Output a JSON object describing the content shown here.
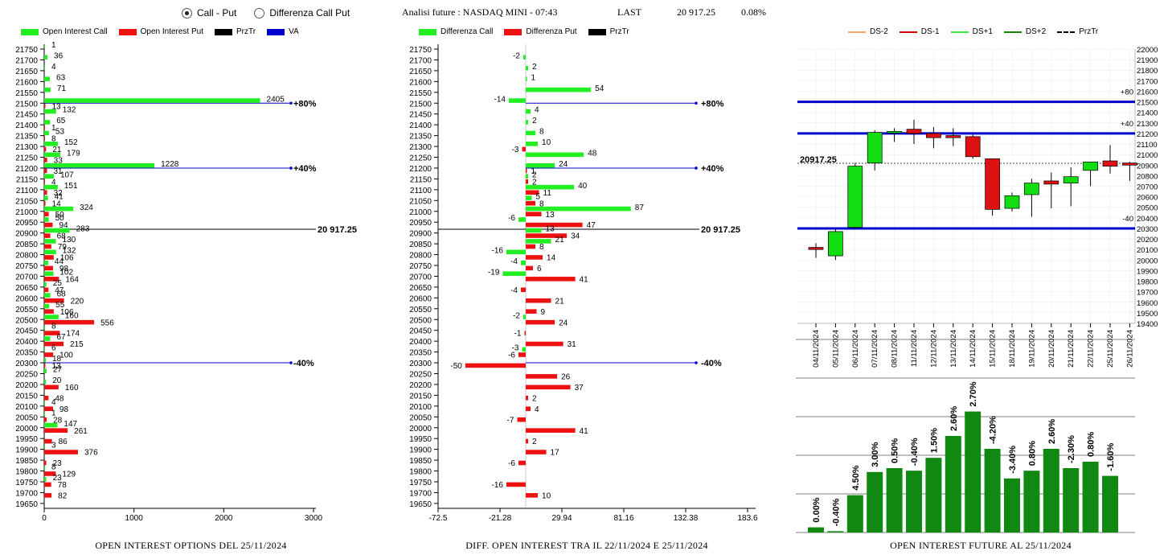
{
  "header": {
    "radio_call_put": "Call - Put",
    "radio_diff": "Differenza Call Put",
    "title": "Analisi future : NASDAQ MINI - 07:43",
    "last_label": "LAST",
    "price": "20 917.25",
    "change": "0.08%"
  },
  "legends": {
    "left": [
      {
        "label": "Open Interest Call",
        "color": "#22ee22",
        "kind": "box"
      },
      {
        "label": "Open Interest Put",
        "color": "#ee1111",
        "kind": "box"
      },
      {
        "label": "PrzTr",
        "color": "#000000",
        "kind": "box"
      },
      {
        "label": "VA",
        "color": "#0000cc",
        "kind": "box"
      }
    ],
    "mid": [
      {
        "label": "Differenza Call",
        "color": "#22ee22",
        "kind": "box"
      },
      {
        "label": "Differenza Put",
        "color": "#ee1111",
        "kind": "box"
      },
      {
        "label": "PrzTr",
        "color": "#000000",
        "kind": "box"
      }
    ],
    "right": [
      {
        "label": "DS-2",
        "color": "#f4a070",
        "kind": "line"
      },
      {
        "label": "DS-1",
        "color": "#dd0000",
        "kind": "line"
      },
      {
        "label": "DS+1",
        "color": "#33ee33",
        "kind": "line"
      },
      {
        "label": "DS+2",
        "color": "#118811",
        "kind": "line"
      },
      {
        "label": "PrzTr",
        "color": "#000000",
        "kind": "dash"
      }
    ]
  },
  "titles": {
    "left": "OPEN INTEREST OPTIONS DEL 25/11/2024",
    "mid": "DIFF. OPEN INTEREST TRA IL 22/11/2024 E 25/11/2024",
    "right": "OPEN INTEREST FUTURE AL 25/11/2024"
  },
  "chart_data": [
    {
      "type": "bar",
      "orientation": "horizontal",
      "title": "OPEN INTEREST OPTIONS DEL 25/11/2024",
      "categories": [
        21750,
        21700,
        21650,
        21600,
        21550,
        21500,
        21450,
        21400,
        21350,
        21300,
        21250,
        21200,
        21150,
        21100,
        21050,
        21000,
        20950,
        20900,
        20850,
        20800,
        20750,
        20700,
        20650,
        20600,
        20550,
        20500,
        20450,
        20400,
        20350,
        20300,
        20250,
        20200,
        20150,
        20100,
        20050,
        20000,
        19950,
        19900,
        19850,
        19800,
        19750,
        19700,
        19650
      ],
      "series": [
        {
          "name": "Open Interest Call",
          "color": "#22ee22",
          "values": [
            1,
            36,
            4,
            63,
            71,
            2405,
            132,
            65,
            53,
            152,
            179,
            1228,
            107,
            151,
            41,
            324,
            50,
            283,
            130,
            132,
            44,
            102,
            25,
            68,
            55,
            160,
            8,
            67,
            6,
            18,
            27,
            20,
            null,
            4,
            1,
            147,
            null,
            3,
            null,
            8,
            23,
            null,
            null
          ]
        },
        {
          "name": "Open Interest Put",
          "color": "#ee1111",
          "values": [
            null,
            null,
            null,
            null,
            null,
            13,
            null,
            1,
            8,
            21,
            33,
            31,
            4,
            32,
            14,
            50,
            94,
            68,
            79,
            106,
            98,
            164,
            47,
            220,
            106,
            556,
            174,
            215,
            100,
            13,
            null,
            160,
            48,
            98,
            28,
            261,
            86,
            376,
            23,
            129,
            78,
            82,
            null
          ]
        }
      ],
      "reference_lines": [
        {
          "label": "+80%",
          "price": 21500,
          "color": "#0000cc"
        },
        {
          "label": "+40%",
          "price": 21200,
          "color": "#0000cc"
        },
        {
          "label": "20 917.25",
          "price": 20917.25,
          "color": "#000000"
        },
        {
          "label": "-40%",
          "price": 20300,
          "color": "#0000cc"
        }
      ],
      "xticks": [
        0,
        1000,
        2000,
        3000
      ],
      "xlim": [
        0,
        3000
      ]
    },
    {
      "type": "bar",
      "orientation": "horizontal",
      "title": "DIFF. OPEN INTEREST TRA IL 22/11/2024 E 25/11/2024",
      "categories": [
        21750,
        21700,
        21650,
        21600,
        21550,
        21500,
        21450,
        21400,
        21350,
        21300,
        21250,
        21200,
        21150,
        21100,
        21050,
        21000,
        20950,
        20900,
        20850,
        20800,
        20750,
        20700,
        20650,
        20600,
        20550,
        20500,
        20450,
        20400,
        20350,
        20300,
        20250,
        20200,
        20150,
        20100,
        20050,
        20000,
        19950,
        19900,
        19850,
        19800,
        19750,
        19700,
        19650
      ],
      "series": [
        {
          "name": "Differenza Call",
          "color": "#22ee22",
          "values": [
            null,
            -2,
            2,
            1,
            54,
            -14,
            4,
            2,
            8,
            10,
            48,
            24,
            2,
            40,
            5,
            87,
            -6,
            13,
            21,
            -16,
            -4,
            -19,
            null,
            null,
            null,
            -2,
            null,
            null,
            -3,
            null,
            null,
            null,
            null,
            null,
            null,
            null,
            null,
            null,
            null,
            null,
            null,
            null,
            null
          ]
        },
        {
          "name": "Differenza Put",
          "color": "#ee1111",
          "values": [
            null,
            null,
            null,
            null,
            null,
            null,
            null,
            null,
            null,
            -3,
            null,
            1,
            2,
            11,
            8,
            13,
            47,
            34,
            8,
            14,
            6,
            41,
            -4,
            21,
            9,
            24,
            -1,
            31,
            -6,
            -50,
            26,
            37,
            2,
            4,
            -7,
            41,
            2,
            17,
            -6,
            null,
            -16,
            10,
            null
          ]
        }
      ],
      "reference_lines": [
        {
          "label": "+80%",
          "price": 21500,
          "color": "#0000cc"
        },
        {
          "label": "+40%",
          "price": 21200,
          "color": "#0000cc"
        },
        {
          "label": "20 917.25",
          "price": 20917.25,
          "color": "#000000"
        },
        {
          "label": "-40%",
          "price": 20300,
          "color": "#0000cc"
        }
      ],
      "xticks": [
        "-72.5",
        "-21.28",
        "29.94",
        "81.16",
        "132.38",
        "183.6"
      ],
      "xlim": [
        -72.5,
        183.6
      ]
    },
    {
      "type": "candlestick",
      "dates": [
        "04/11/2024",
        "05/11/2024",
        "06/11/2024",
        "07/11/2024",
        "08/11/2024",
        "11/11/2024",
        "12/11/2024",
        "13/11/2024",
        "14/11/2024",
        "15/11/2024",
        "18/11/2024",
        "19/11/2024",
        "20/11/2024",
        "21/11/2024",
        "22/11/2024",
        "25/11/2024",
        "26/11/2024"
      ],
      "ohlc": [
        [
          20120,
          20160,
          20020,
          20100
        ],
        [
          20040,
          20290,
          20000,
          20270
        ],
        [
          20310,
          20920,
          20290,
          20890
        ],
        [
          20920,
          21230,
          20850,
          21210
        ],
        [
          21210,
          21250,
          21120,
          21220
        ],
        [
          21240,
          21330,
          21100,
          21200
        ],
        [
          21200,
          21260,
          21060,
          21160
        ],
        [
          21180,
          21250,
          21080,
          21160
        ],
        [
          21170,
          21190,
          20960,
          20980
        ],
        [
          20960,
          20960,
          20420,
          20480
        ],
        [
          20490,
          20640,
          20460,
          20610
        ],
        [
          20620,
          20770,
          20410,
          20730
        ],
        [
          20750,
          20830,
          20490,
          20720
        ],
        [
          20730,
          20880,
          20510,
          20790
        ],
        [
          20850,
          20920,
          20700,
          20930
        ],
        [
          20940,
          21090,
          20820,
          20890
        ],
        [
          20920,
          20930,
          20750,
          20900
        ]
      ],
      "ylim": [
        19400,
        22000
      ],
      "yticks": [
        19400,
        19500,
        19600,
        19700,
        19800,
        19900,
        20000,
        20100,
        20200,
        20300,
        20400,
        20500,
        20600,
        20700,
        20800,
        20900,
        21000,
        21100,
        21200,
        21300,
        21400,
        21500,
        21600,
        21700,
        21800,
        21900,
        22000
      ],
      "hlines": [
        {
          "label": "+80",
          "price": 21500,
          "color": "#0000cc"
        },
        {
          "label": "+40",
          "price": 21200,
          "color": "#0000cc"
        },
        {
          "label": "-40",
          "price": 20300,
          "color": "#0000cc"
        }
      ],
      "price_label": "20917.25",
      "price": 20917.25
    },
    {
      "type": "bar",
      "title": "OPEN INTEREST FUTURE AL 25/11/2024",
      "categories": [
        "04/11/2024",
        "05/11/2024",
        "06/11/2024",
        "07/11/2024",
        "08/11/2024",
        "11/11/2024",
        "12/11/2024",
        "13/11/2024",
        "14/11/2024",
        "15/11/2024",
        "18/11/2024",
        "19/11/2024",
        "20/11/2024",
        "21/11/2024",
        "22/11/2024",
        "25/11/2024",
        "26/11/2024"
      ],
      "labels": [
        "0.00%",
        "-0.40%",
        "4.50%",
        "3.00%",
        "0.50%",
        "-0.40%",
        "1.50%",
        "2.60%",
        "2.70%",
        "-4.20%",
        "-3.40%",
        "0.80%",
        "2.60%",
        "-2.30%",
        "0.80%",
        "-1.60%"
      ],
      "values": [
        4,
        1,
        29,
        47,
        50,
        48,
        58,
        75,
        94,
        65,
        42,
        48,
        65,
        50,
        55,
        44
      ],
      "color": "#118811"
    }
  ]
}
